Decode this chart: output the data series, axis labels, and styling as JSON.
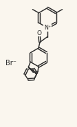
{
  "bg_color": "#faf6ee",
  "line_color": "#2a2a2a",
  "text_color": "#2a2a2a",
  "figsize": [
    1.12,
    1.85
  ],
  "dpi": 100,
  "br_label": "Br⁻",
  "n_plus_label": "N⁺",
  "o_label": "O",
  "lw": 1.05
}
